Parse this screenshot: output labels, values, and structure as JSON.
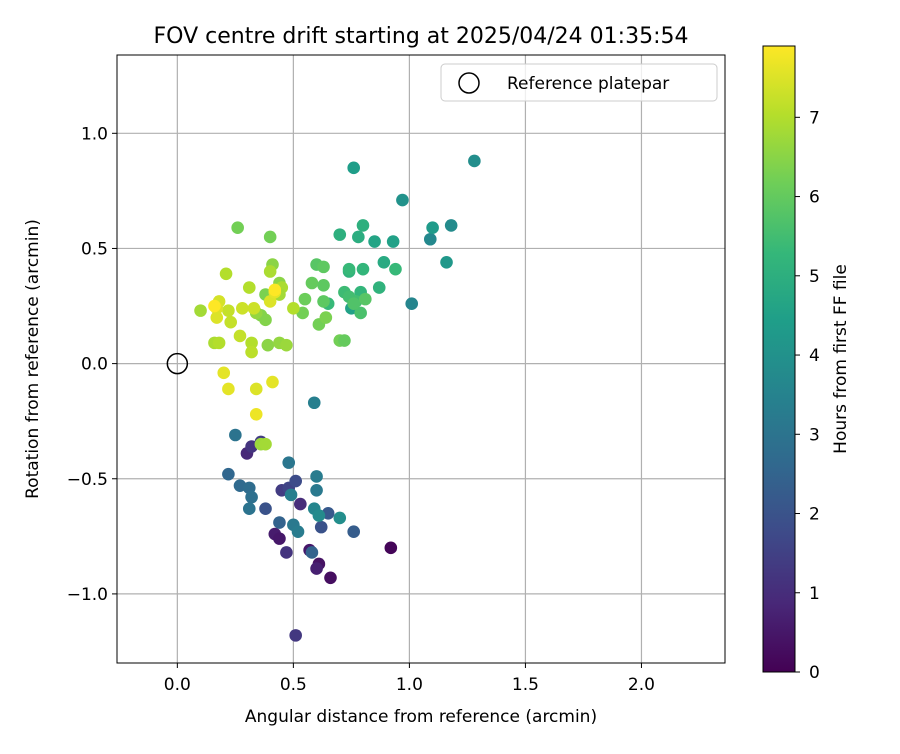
{
  "chart_data": {
    "type": "scatter",
    "title": "FOV centre drift starting at 2025/04/24 01:35:54",
    "xlabel": "Angular distance from reference (arcmin)",
    "ylabel": "Rotation from reference (arcmin)",
    "xlim": [
      -0.26,
      2.36
    ],
    "ylim": [
      -1.3,
      1.34
    ],
    "xticks": [
      0.0,
      0.5,
      1.0,
      1.5,
      2.0
    ],
    "xtick_labels": [
      "0.0",
      "0.5",
      "1.0",
      "1.5",
      "2.0"
    ],
    "yticks": [
      -1.0,
      -0.5,
      0.0,
      0.5,
      1.0
    ],
    "ytick_labels": [
      "−1.0",
      "−0.5",
      "0.0",
      "0.5",
      "1.0"
    ],
    "grid": true,
    "legend": {
      "placement": "top-right",
      "entries": [
        "Reference platepar"
      ]
    },
    "reference_point": {
      "x": 0.0,
      "y": 0.0
    },
    "colorbar": {
      "label": "Hours from first FF file",
      "colormap": "viridis",
      "range": [
        0,
        7.9
      ],
      "ticks": [
        0,
        1,
        2,
        3,
        4,
        5,
        6,
        7
      ],
      "tick_labels": [
        "0",
        "1",
        "2",
        "3",
        "4",
        "5",
        "6",
        "7"
      ]
    },
    "points": [
      {
        "x": 0.92,
        "y": -0.8,
        "h": 0.1
      },
      {
        "x": 0.66,
        "y": -0.93,
        "h": 0.3
      },
      {
        "x": 0.61,
        "y": -0.87,
        "h": 0.4
      },
      {
        "x": 0.57,
        "y": -0.81,
        "h": 0.5
      },
      {
        "x": 0.6,
        "y": -0.89,
        "h": 0.7
      },
      {
        "x": 0.42,
        "y": -0.74,
        "h": 0.6
      },
      {
        "x": 0.44,
        "y": -0.76,
        "h": 0.5
      },
      {
        "x": 0.3,
        "y": -0.39,
        "h": 0.9
      },
      {
        "x": 0.53,
        "y": -0.61,
        "h": 1.0
      },
      {
        "x": 0.51,
        "y": -1.18,
        "h": 1.3
      },
      {
        "x": 0.47,
        "y": -0.82,
        "h": 1.2
      },
      {
        "x": 0.32,
        "y": -0.36,
        "h": 1.2
      },
      {
        "x": 0.36,
        "y": -0.34,
        "h": 1.4
      },
      {
        "x": 0.45,
        "y": -0.55,
        "h": 1.4
      },
      {
        "x": 0.48,
        "y": -0.54,
        "h": 1.6
      },
      {
        "x": 0.51,
        "y": -0.51,
        "h": 1.8
      },
      {
        "x": 0.38,
        "y": -0.63,
        "h": 2.0
      },
      {
        "x": 0.62,
        "y": -0.71,
        "h": 2.0
      },
      {
        "x": 0.65,
        "y": -0.65,
        "h": 2.2
      },
      {
        "x": 0.76,
        "y": -0.73,
        "h": 2.3
      },
      {
        "x": 0.58,
        "y": -0.82,
        "h": 2.5
      },
      {
        "x": 0.44,
        "y": -0.69,
        "h": 2.5
      },
      {
        "x": 0.22,
        "y": -0.48,
        "h": 2.6
      },
      {
        "x": 0.27,
        "y": -0.53,
        "h": 2.7
      },
      {
        "x": 0.31,
        "y": -0.54,
        "h": 2.8
      },
      {
        "x": 0.32,
        "y": -0.58,
        "h": 2.9
      },
      {
        "x": 0.31,
        "y": -0.63,
        "h": 3.0
      },
      {
        "x": 0.25,
        "y": -0.31,
        "h": 3.0
      },
      {
        "x": 0.48,
        "y": -0.43,
        "h": 3.1
      },
      {
        "x": 0.5,
        "y": -0.7,
        "h": 3.2
      },
      {
        "x": 0.52,
        "y": -0.73,
        "h": 3.3
      },
      {
        "x": 0.6,
        "y": -0.55,
        "h": 3.2
      },
      {
        "x": 0.6,
        "y": -0.49,
        "h": 3.3
      },
      {
        "x": 0.59,
        "y": -0.17,
        "h": 3.4
      },
      {
        "x": 0.49,
        "y": -0.57,
        "h": 3.4
      },
      {
        "x": 0.59,
        "y": -0.63,
        "h": 3.6
      },
      {
        "x": 0.61,
        "y": -0.66,
        "h": 3.8
      },
      {
        "x": 0.7,
        "y": -0.67,
        "h": 3.9
      },
      {
        "x": 1.28,
        "y": 0.88,
        "h": 3.9
      },
      {
        "x": 1.18,
        "y": 0.6,
        "h": 3.8
      },
      {
        "x": 1.09,
        "y": 0.54,
        "h": 3.7
      },
      {
        "x": 1.01,
        "y": 0.26,
        "h": 3.6
      },
      {
        "x": 0.97,
        "y": 0.71,
        "h": 4.0
      },
      {
        "x": 1.16,
        "y": 0.44,
        "h": 4.2
      },
      {
        "x": 1.1,
        "y": 0.59,
        "h": 4.3
      },
      {
        "x": 0.76,
        "y": 0.85,
        "h": 4.4
      },
      {
        "x": 0.93,
        "y": 0.53,
        "h": 4.5
      },
      {
        "x": 0.85,
        "y": 0.53,
        "h": 4.6
      },
      {
        "x": 0.89,
        "y": 0.44,
        "h": 4.8
      },
      {
        "x": 0.75,
        "y": 0.24,
        "h": 4.5
      },
      {
        "x": 0.78,
        "y": 0.55,
        "h": 4.9
      },
      {
        "x": 0.8,
        "y": 0.6,
        "h": 5.0
      },
      {
        "x": 0.7,
        "y": 0.56,
        "h": 5.0
      },
      {
        "x": 0.74,
        "y": 0.4,
        "h": 5.1
      },
      {
        "x": 0.87,
        "y": 0.33,
        "h": 5.1
      },
      {
        "x": 0.79,
        "y": 0.31,
        "h": 5.2
      },
      {
        "x": 0.8,
        "y": 0.41,
        "h": 5.2
      },
      {
        "x": 0.94,
        "y": 0.41,
        "h": 5.3
      },
      {
        "x": 0.74,
        "y": 0.41,
        "h": 5.3
      },
      {
        "x": 0.65,
        "y": 0.26,
        "h": 5.3
      },
      {
        "x": 0.72,
        "y": 0.31,
        "h": 5.4
      },
      {
        "x": 0.74,
        "y": 0.29,
        "h": 5.5
      },
      {
        "x": 0.77,
        "y": 0.27,
        "h": 5.5
      },
      {
        "x": 0.79,
        "y": 0.22,
        "h": 5.6
      },
      {
        "x": 0.76,
        "y": 0.26,
        "h": 5.7
      },
      {
        "x": 0.81,
        "y": 0.28,
        "h": 5.8
      },
      {
        "x": 0.6,
        "y": 0.43,
        "h": 5.8
      },
      {
        "x": 0.63,
        "y": 0.42,
        "h": 5.9
      },
      {
        "x": 0.63,
        "y": 0.34,
        "h": 5.9
      },
      {
        "x": 0.58,
        "y": 0.35,
        "h": 6.0
      },
      {
        "x": 0.63,
        "y": 0.27,
        "h": 5.9
      },
      {
        "x": 0.55,
        "y": 0.28,
        "h": 6.1
      },
      {
        "x": 0.54,
        "y": 0.22,
        "h": 6.2
      },
      {
        "x": 0.61,
        "y": 0.17,
        "h": 6.2
      },
      {
        "x": 0.64,
        "y": 0.2,
        "h": 6.3
      },
      {
        "x": 0.7,
        "y": 0.1,
        "h": 6.2
      },
      {
        "x": 0.72,
        "y": 0.1,
        "h": 6.0
      },
      {
        "x": 0.26,
        "y": 0.59,
        "h": 6.2
      },
      {
        "x": 0.4,
        "y": 0.55,
        "h": 6.2
      },
      {
        "x": 0.38,
        "y": 0.3,
        "h": 6.3
      },
      {
        "x": 0.36,
        "y": 0.21,
        "h": 6.4
      },
      {
        "x": 0.38,
        "y": 0.19,
        "h": 6.4
      },
      {
        "x": 0.44,
        "y": 0.35,
        "h": 6.5
      },
      {
        "x": 0.41,
        "y": 0.43,
        "h": 6.5
      },
      {
        "x": 0.39,
        "y": 0.08,
        "h": 6.5
      },
      {
        "x": 0.34,
        "y": 0.22,
        "h": 6.6
      },
      {
        "x": 0.44,
        "y": 0.09,
        "h": 6.6
      },
      {
        "x": 0.47,
        "y": 0.08,
        "h": 6.7
      },
      {
        "x": 0.36,
        "y": -0.35,
        "h": 6.7
      },
      {
        "x": 0.38,
        "y": -0.35,
        "h": 6.8
      },
      {
        "x": 0.21,
        "y": 0.39,
        "h": 7.0
      },
      {
        "x": 0.31,
        "y": 0.33,
        "h": 7.0
      },
      {
        "x": 0.5,
        "y": 0.24,
        "h": 7.0
      },
      {
        "x": 0.4,
        "y": 0.4,
        "h": 6.9
      },
      {
        "x": 0.45,
        "y": 0.33,
        "h": 6.9
      },
      {
        "x": 0.44,
        "y": 0.3,
        "h": 6.8
      },
      {
        "x": 0.1,
        "y": 0.23,
        "h": 6.8
      },
      {
        "x": 0.16,
        "y": 0.09,
        "h": 6.9
      },
      {
        "x": 0.18,
        "y": 0.09,
        "h": 7.0
      },
      {
        "x": 0.32,
        "y": 0.09,
        "h": 7.0
      },
      {
        "x": 0.32,
        "y": 0.05,
        "h": 7.1
      },
      {
        "x": 0.27,
        "y": 0.12,
        "h": 7.2
      },
      {
        "x": 0.23,
        "y": 0.18,
        "h": 7.2
      },
      {
        "x": 0.22,
        "y": 0.23,
        "h": 7.2
      },
      {
        "x": 0.28,
        "y": 0.24,
        "h": 7.3
      },
      {
        "x": 0.33,
        "y": 0.24,
        "h": 7.3
      },
      {
        "x": 0.18,
        "y": 0.27,
        "h": 7.4
      },
      {
        "x": 0.17,
        "y": 0.24,
        "h": 7.5
      },
      {
        "x": 0.17,
        "y": 0.2,
        "h": 7.5
      },
      {
        "x": 0.4,
        "y": 0.27,
        "h": 7.5
      },
      {
        "x": 0.42,
        "y": 0.31,
        "h": 7.6
      },
      {
        "x": 0.2,
        "y": -0.04,
        "h": 7.6
      },
      {
        "x": 0.22,
        "y": -0.11,
        "h": 7.6
      },
      {
        "x": 0.34,
        "y": -0.11,
        "h": 7.5
      },
      {
        "x": 0.41,
        "y": -0.08,
        "h": 7.6
      },
      {
        "x": 0.34,
        "y": -0.22,
        "h": 7.7
      },
      {
        "x": 0.16,
        "y": 0.25,
        "h": 7.9
      },
      {
        "x": 0.42,
        "y": 0.32,
        "h": 7.9
      }
    ]
  }
}
